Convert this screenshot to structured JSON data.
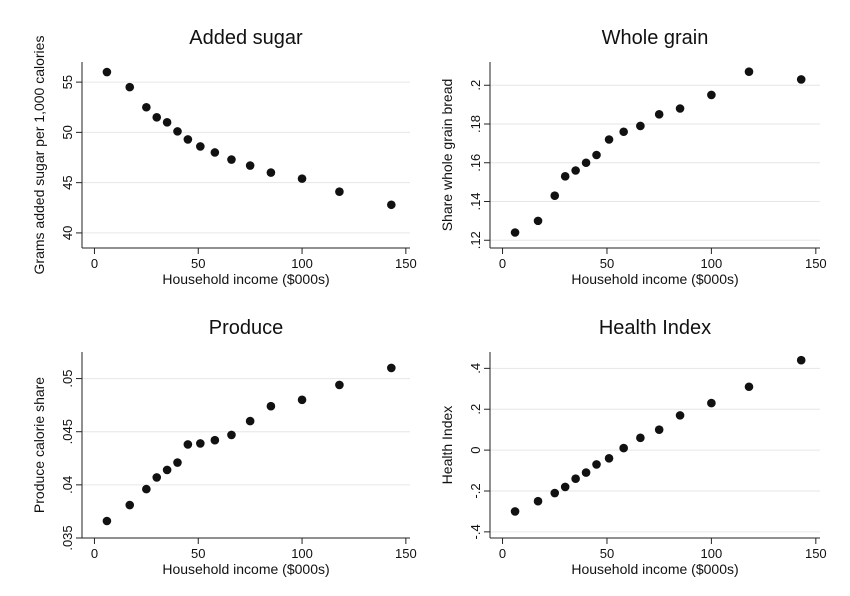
{
  "chart_data": [
    {
      "type": "scatter",
      "title": "Added sugar",
      "xlabel": "Household income ($000s)",
      "ylabel": "Grams added sugar per 1,000 calories",
      "xlim": [
        -6,
        152
      ],
      "ylim": [
        38.5,
        57
      ],
      "xticks": [
        0,
        50,
        100,
        150
      ],
      "xtick_labels": [
        "0",
        "50",
        "100",
        "150"
      ],
      "yticks": [
        40,
        45,
        50,
        55
      ],
      "ytick_labels": [
        "40",
        "45",
        "50",
        "55"
      ],
      "grid": true,
      "x": [
        6,
        17,
        25,
        30,
        35,
        40,
        45,
        51,
        58,
        66,
        75,
        85,
        100,
        118,
        143
      ],
      "y": [
        56.0,
        54.5,
        52.5,
        51.5,
        51.0,
        50.1,
        49.3,
        48.6,
        48.0,
        47.3,
        46.7,
        46.0,
        45.4,
        44.1,
        42.8
      ]
    },
    {
      "type": "scatter",
      "title": "Whole grain",
      "xlabel": "Household income ($000s)",
      "ylabel": "Share whole grain bread",
      "xlim": [
        -6,
        152
      ],
      "ylim": [
        0.116,
        0.212
      ],
      "xticks": [
        0,
        50,
        100,
        150
      ],
      "xtick_labels": [
        "0",
        "50",
        "100",
        "150"
      ],
      "yticks": [
        0.12,
        0.14,
        0.16,
        0.18,
        0.2
      ],
      "ytick_labels": [
        ".12",
        ".14",
        ".16",
        ".18",
        ".2"
      ],
      "grid": true,
      "x": [
        6,
        17,
        25,
        30,
        35,
        40,
        45,
        51,
        58,
        66,
        75,
        85,
        100,
        118,
        143
      ],
      "y": [
        0.124,
        0.13,
        0.143,
        0.153,
        0.156,
        0.16,
        0.164,
        0.172,
        0.176,
        0.179,
        0.185,
        0.188,
        0.195,
        0.207,
        0.203
      ]
    },
    {
      "type": "scatter",
      "title": "Produce",
      "xlabel": "Household income ($000s)",
      "ylabel": "Produce calorie share",
      "xlim": [
        -6,
        152
      ],
      "ylim": [
        0.035,
        0.0525
      ],
      "xticks": [
        0,
        50,
        100,
        150
      ],
      "xtick_labels": [
        "0",
        "50",
        "100",
        "150"
      ],
      "yticks": [
        0.035,
        0.04,
        0.045,
        0.05
      ],
      "ytick_labels": [
        ".035",
        ".04",
        ".045",
        ".05"
      ],
      "grid": true,
      "x": [
        6,
        17,
        25,
        30,
        35,
        40,
        45,
        51,
        58,
        66,
        75,
        85,
        100,
        118,
        143
      ],
      "y": [
        0.0366,
        0.0381,
        0.0396,
        0.0407,
        0.0414,
        0.0421,
        0.0438,
        0.0439,
        0.0442,
        0.0447,
        0.046,
        0.0474,
        0.048,
        0.0494,
        0.051
      ]
    },
    {
      "type": "scatter",
      "title": "Health Index",
      "xlabel": "Household income ($000s)",
      "ylabel": "Health Index",
      "xlim": [
        -6,
        152
      ],
      "ylim": [
        -0.43,
        0.48
      ],
      "xticks": [
        0,
        50,
        100,
        150
      ],
      "xtick_labels": [
        "0",
        "50",
        "100",
        "150"
      ],
      "yticks": [
        -0.4,
        -0.2,
        0,
        0.2,
        0.4
      ],
      "ytick_labels": [
        "-.4",
        "-.2",
        "0",
        ".2",
        ".4"
      ],
      "grid": true,
      "x": [
        6,
        17,
        25,
        30,
        35,
        40,
        45,
        51,
        58,
        66,
        75,
        85,
        100,
        118,
        143
      ],
      "y": [
        -0.3,
        -0.25,
        -0.21,
        -0.18,
        -0.14,
        -0.11,
        -0.07,
        -0.04,
        0.01,
        0.06,
        0.1,
        0.17,
        0.23,
        0.31,
        0.44
      ]
    }
  ]
}
